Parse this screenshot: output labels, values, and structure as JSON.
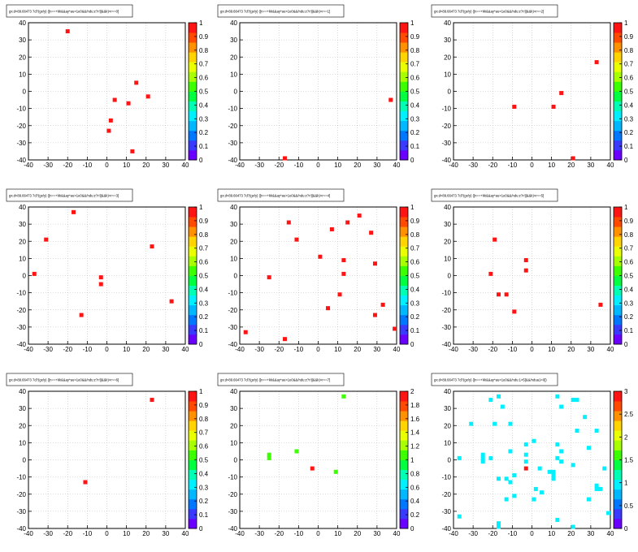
{
  "colors": {
    "background": "#ffffff",
    "frame": "#000000",
    "grid": "#bbbbbb",
    "title_box_fill": "#ffffff"
  },
  "palette": [
    "#6a00ff",
    "#3a3aff",
    "#0077ff",
    "#00b8ff",
    "#00f0ff",
    "#00ffb4",
    "#00ff40",
    "#3cff00",
    "#a8ff00",
    "#eaff00",
    "#ffd400",
    "#ff9000",
    "#ff4a00",
    "#ff1414"
  ],
  "chart_data": [
    {
      "type": "scatter",
      "title": "gx:d<89.66473 7d?(gx/y) ([n==+kk&&ay*au>1e0&&/ndu:z?r!||&&k)<r==0]",
      "xlim": [
        -40,
        40
      ],
      "ylim": [
        -40,
        40
      ],
      "xticks": [
        -40,
        -30,
        -20,
        -10,
        0,
        10,
        20,
        30,
        40
      ],
      "yticks": [
        -40,
        -30,
        -20,
        -10,
        0,
        10,
        20,
        30,
        40
      ],
      "zlim": [
        0,
        1
      ],
      "zticks": [
        0,
        0.1,
        0.2,
        0.3,
        0.4,
        0.5,
        0.6,
        0.7,
        0.8,
        0.9,
        1
      ],
      "grid": true,
      "points": [
        {
          "x": -20,
          "y": 35,
          "z": 1
        },
        {
          "x": 15,
          "y": 5,
          "z": 1
        },
        {
          "x": 21,
          "y": -3,
          "z": 1
        },
        {
          "x": 4,
          "y": -5,
          "z": 1
        },
        {
          "x": 11,
          "y": -7,
          "z": 1
        },
        {
          "x": 2,
          "y": -17,
          "z": 1
        },
        {
          "x": 1,
          "y": -23,
          "z": 1
        },
        {
          "x": 13,
          "y": -35,
          "z": 1
        }
      ]
    },
    {
      "type": "scatter",
      "title": "gx:d<89.66473 7d?(gx/y) ([n==+kk&&ay*au>1e0&&/ndu:z?r!||&&k)<r==1]",
      "xlim": [
        -40,
        40
      ],
      "ylim": [
        -40,
        40
      ],
      "xticks": [
        -40,
        -30,
        -20,
        -10,
        0,
        10,
        20,
        30,
        40
      ],
      "yticks": [
        -40,
        -30,
        -20,
        -10,
        0,
        10,
        20,
        30,
        40
      ],
      "zlim": [
        0,
        1
      ],
      "zticks": [
        0,
        0.1,
        0.2,
        0.3,
        0.4,
        0.5,
        0.6,
        0.7,
        0.8,
        0.9,
        1
      ],
      "grid": true,
      "points": [
        {
          "x": 37,
          "y": -5,
          "z": 1
        },
        {
          "x": -17,
          "y": -40,
          "z": 1
        }
      ]
    },
    {
      "type": "scatter",
      "title": "gx:d<89.66473 7d?(gx/y) ([n==+kk&&ay*au>1e0&&/ndu:z?r!||&&k)<r==2]",
      "xlim": [
        -40,
        40
      ],
      "ylim": [
        -40,
        40
      ],
      "xticks": [
        -40,
        -30,
        -20,
        -10,
        0,
        10,
        20,
        30,
        40
      ],
      "yticks": [
        -40,
        -30,
        -20,
        -10,
        0,
        10,
        20,
        30,
        40
      ],
      "zlim": [
        0,
        1
      ],
      "zticks": [
        0,
        0.1,
        0.2,
        0.3,
        0.4,
        0.5,
        0.6,
        0.7,
        0.8,
        0.9,
        1
      ],
      "grid": true,
      "points": [
        {
          "x": 33,
          "y": 17,
          "z": 1
        },
        {
          "x": 15,
          "y": -1,
          "z": 1
        },
        {
          "x": -9,
          "y": -9,
          "z": 1
        },
        {
          "x": 11,
          "y": -9,
          "z": 1
        },
        {
          "x": 21,
          "y": -40,
          "z": 1
        }
      ]
    },
    {
      "type": "scatter",
      "title": "gx:d<89.66473 7d?(gx/y) ([n==+kk&&ay*au>1e0&&/ndu:z?r!||&&k)<r==3]",
      "xlim": [
        -40,
        40
      ],
      "ylim": [
        -40,
        40
      ],
      "xticks": [
        -40,
        -30,
        -20,
        -10,
        0,
        10,
        20,
        30,
        40
      ],
      "yticks": [
        -40,
        -30,
        -20,
        -10,
        0,
        10,
        20,
        30,
        40
      ],
      "zlim": [
        0,
        1
      ],
      "zticks": [
        0,
        0.1,
        0.2,
        0.3,
        0.4,
        0.5,
        0.6,
        0.7,
        0.8,
        0.9,
        1
      ],
      "grid": true,
      "points": [
        {
          "x": -17,
          "y": 37,
          "z": 1
        },
        {
          "x": -31,
          "y": 21,
          "z": 1
        },
        {
          "x": 23,
          "y": 17,
          "z": 1
        },
        {
          "x": -37,
          "y": 1,
          "z": 1
        },
        {
          "x": -3,
          "y": -1,
          "z": 1
        },
        {
          "x": -3,
          "y": -5,
          "z": 1
        },
        {
          "x": 33,
          "y": -15,
          "z": 1
        },
        {
          "x": -13,
          "y": -23,
          "z": 1
        }
      ]
    },
    {
      "type": "scatter",
      "title": "gx:d<89.66473 7d?(gx/y) ([n==+kk&&ay*au>1e0&&/ndu:z?r!||&&k)<r==4]",
      "xlim": [
        -40,
        40
      ],
      "ylim": [
        -40,
        40
      ],
      "xticks": [
        -40,
        -30,
        -20,
        -10,
        0,
        10,
        20,
        30,
        40
      ],
      "yticks": [
        -40,
        -30,
        -20,
        -10,
        0,
        10,
        20,
        30,
        40
      ],
      "zlim": [
        0,
        1
      ],
      "zticks": [
        0,
        0.1,
        0.2,
        0.3,
        0.4,
        0.5,
        0.6,
        0.7,
        0.8,
        0.9,
        1
      ],
      "grid": true,
      "points": [
        {
          "x": 21,
          "y": 35,
          "z": 1
        },
        {
          "x": -15,
          "y": 31,
          "z": 1
        },
        {
          "x": 15,
          "y": 31,
          "z": 1
        },
        {
          "x": 7,
          "y": 27,
          "z": 1
        },
        {
          "x": 27,
          "y": 25,
          "z": 1
        },
        {
          "x": -11,
          "y": 21,
          "z": 1
        },
        {
          "x": 1,
          "y": 11,
          "z": 1
        },
        {
          "x": 13,
          "y": 9,
          "z": 1
        },
        {
          "x": 29,
          "y": 7,
          "z": 1
        },
        {
          "x": 13,
          "y": 1,
          "z": 1
        },
        {
          "x": -25,
          "y": -1,
          "z": 1
        },
        {
          "x": 11,
          "y": -11,
          "z": 1
        },
        {
          "x": 33,
          "y": -17,
          "z": 1
        },
        {
          "x": 5,
          "y": -19,
          "z": 1
        },
        {
          "x": 29,
          "y": -23,
          "z": 1
        },
        {
          "x": 39,
          "y": -31,
          "z": 1
        },
        {
          "x": -37,
          "y": -33,
          "z": 1
        },
        {
          "x": -17,
          "y": -37,
          "z": 1
        }
      ]
    },
    {
      "type": "scatter",
      "title": "gx:d<89.66473 7d?(gx/y) ([n==+kk&&ay*au>1e0&&/ndu:z?r!||&&k)<r==5]",
      "xlim": [
        -40,
        40
      ],
      "ylim": [
        -40,
        40
      ],
      "xticks": [
        -40,
        -30,
        -20,
        -10,
        0,
        10,
        20,
        30,
        40
      ],
      "yticks": [
        -40,
        -30,
        -20,
        -10,
        0,
        10,
        20,
        30,
        40
      ],
      "zlim": [
        0,
        1
      ],
      "zticks": [
        0,
        0.1,
        0.2,
        0.3,
        0.4,
        0.5,
        0.6,
        0.7,
        0.8,
        0.9,
        1
      ],
      "grid": true,
      "points": [
        {
          "x": -19,
          "y": 21,
          "z": 1
        },
        {
          "x": -3,
          "y": 9,
          "z": 1
        },
        {
          "x": -3,
          "y": 3,
          "z": 1
        },
        {
          "x": -21,
          "y": 1,
          "z": 1
        },
        {
          "x": -17,
          "y": -11,
          "z": 1
        },
        {
          "x": -13,
          "y": -11,
          "z": 1
        },
        {
          "x": 35,
          "y": -17,
          "z": 1
        },
        {
          "x": -9,
          "y": -21,
          "z": 1
        }
      ]
    },
    {
      "type": "scatter",
      "title": "gx:d<89.66473 7d?(gx/y) ([n==+kk&&ay*au>1e0&&/ndu:z?r!||&&k)<r==6]",
      "xlim": [
        -40,
        40
      ],
      "ylim": [
        -40,
        40
      ],
      "xticks": [
        -40,
        -30,
        -20,
        -10,
        0,
        10,
        20,
        30,
        40
      ],
      "yticks": [
        -40,
        -30,
        -20,
        -10,
        0,
        10,
        20,
        30,
        40
      ],
      "zlim": [
        0,
        1
      ],
      "zticks": [
        0,
        0.1,
        0.2,
        0.3,
        0.4,
        0.5,
        0.6,
        0.7,
        0.8,
        0.9,
        1
      ],
      "grid": true,
      "points": [
        {
          "x": 23,
          "y": 35,
          "z": 1
        },
        {
          "x": -11,
          "y": -13,
          "z": 1
        }
      ]
    },
    {
      "type": "scatter",
      "title": "gx:d<89.66473 7d?(gx/y) ([n==+kk&&ay*au>1e0&&/ndu:z?r!||&&k)<r==7]",
      "xlim": [
        -40,
        40
      ],
      "ylim": [
        -40,
        40
      ],
      "xticks": [
        -40,
        -30,
        -20,
        -10,
        0,
        10,
        20,
        30,
        40
      ],
      "yticks": [
        -40,
        -30,
        -20,
        -10,
        0,
        10,
        20,
        30,
        40
      ],
      "zlim": [
        0,
        2
      ],
      "zticks": [
        0,
        0.2,
        0.4,
        0.6,
        0.8,
        1,
        1.2,
        1.4,
        1.6,
        1.8,
        2
      ],
      "grid": true,
      "points": [
        {
          "x": 13,
          "y": 37,
          "z": 1
        },
        {
          "x": -11,
          "y": 5,
          "z": 1
        },
        {
          "x": -25,
          "y": 3,
          "z": 1
        },
        {
          "x": -25,
          "y": 1,
          "z": 1
        },
        {
          "x": -3,
          "y": -5,
          "z": 2
        },
        {
          "x": 9,
          "y": -7,
          "z": 1
        }
      ]
    },
    {
      "type": "scatter",
      "title": "gx:d<89.66473 7d?(gx/y) ([n==+kk&&ay*au>1e0&&/ndu:1>5]&&/ndua1>0])",
      "xlim": [
        -40,
        40
      ],
      "ylim": [
        -40,
        40
      ],
      "xticks": [
        -40,
        -30,
        -20,
        -10,
        0,
        10,
        20,
        30,
        40
      ],
      "yticks": [
        -40,
        -30,
        -20,
        -10,
        0,
        10,
        20,
        30,
        40
      ],
      "zlim": [
        0,
        3
      ],
      "zticks": [
        0,
        0.5,
        1,
        1.5,
        2,
        2.5,
        3
      ],
      "grid": true,
      "points": [
        {
          "x": -17,
          "y": 37,
          "z": 1
        },
        {
          "x": 13,
          "y": 37,
          "z": 1
        },
        {
          "x": -21,
          "y": 35,
          "z": 1
        },
        {
          "x": 21,
          "y": 35,
          "z": 1
        },
        {
          "x": 23,
          "y": 35,
          "z": 1
        },
        {
          "x": -15,
          "y": 31,
          "z": 1
        },
        {
          "x": 15,
          "y": 31,
          "z": 1
        },
        {
          "x": 27,
          "y": 25,
          "z": 1
        },
        {
          "x": -31,
          "y": 21,
          "z": 1
        },
        {
          "x": -19,
          "y": 21,
          "z": 1
        },
        {
          "x": -11,
          "y": 21,
          "z": 1
        },
        {
          "x": 23,
          "y": 17,
          "z": 1
        },
        {
          "x": 33,
          "y": 17,
          "z": 1
        },
        {
          "x": 1,
          "y": 11,
          "z": 1
        },
        {
          "x": -3,
          "y": 9,
          "z": 1
        },
        {
          "x": 13,
          "y": 9,
          "z": 1
        },
        {
          "x": 29,
          "y": 7,
          "z": 1
        },
        {
          "x": -11,
          "y": 5,
          "z": 1
        },
        {
          "x": 15,
          "y": 5,
          "z": 1
        },
        {
          "x": -25,
          "y": 3,
          "z": 1
        },
        {
          "x": -3,
          "y": 3,
          "z": 1
        },
        {
          "x": -37,
          "y": 1,
          "z": 1
        },
        {
          "x": -25,
          "y": 1,
          "z": 1
        },
        {
          "x": -21,
          "y": 1,
          "z": 1
        },
        {
          "x": 13,
          "y": 1,
          "z": 1
        },
        {
          "x": -25,
          "y": -1,
          "z": 1
        },
        {
          "x": -3,
          "y": -1,
          "z": 1
        },
        {
          "x": 15,
          "y": -1,
          "z": 1
        },
        {
          "x": 21,
          "y": -3,
          "z": 1
        },
        {
          "x": -3,
          "y": -5,
          "z": 3
        },
        {
          "x": 4,
          "y": -5,
          "z": 1
        },
        {
          "x": 37,
          "y": -5,
          "z": 1
        },
        {
          "x": 9,
          "y": -7,
          "z": 1
        },
        {
          "x": 11,
          "y": -7,
          "z": 1
        },
        {
          "x": -9,
          "y": -9,
          "z": 1
        },
        {
          "x": 11,
          "y": -9,
          "z": 1
        },
        {
          "x": -17,
          "y": -11,
          "z": 1
        },
        {
          "x": -13,
          "y": -11,
          "z": 1
        },
        {
          "x": 11,
          "y": -11,
          "z": 1
        },
        {
          "x": -11,
          "y": -13,
          "z": 1
        },
        {
          "x": 33,
          "y": -15,
          "z": 1
        },
        {
          "x": 2,
          "y": -17,
          "z": 1
        },
        {
          "x": 33,
          "y": -17,
          "z": 1
        },
        {
          "x": 35,
          "y": -17,
          "z": 1
        },
        {
          "x": 5,
          "y": -19,
          "z": 1
        },
        {
          "x": -9,
          "y": -21,
          "z": 1
        },
        {
          "x": -13,
          "y": -23,
          "z": 1
        },
        {
          "x": 1,
          "y": -23,
          "z": 1
        },
        {
          "x": 29,
          "y": -23,
          "z": 1
        },
        {
          "x": 39,
          "y": -31,
          "z": 1
        },
        {
          "x": -37,
          "y": -33,
          "z": 1
        },
        {
          "x": 13,
          "y": -35,
          "z": 1
        },
        {
          "x": -17,
          "y": -37,
          "z": 1
        },
        {
          "x": 21,
          "y": -40,
          "z": 1
        },
        {
          "x": -17,
          "y": -40,
          "z": 1
        }
      ]
    }
  ]
}
